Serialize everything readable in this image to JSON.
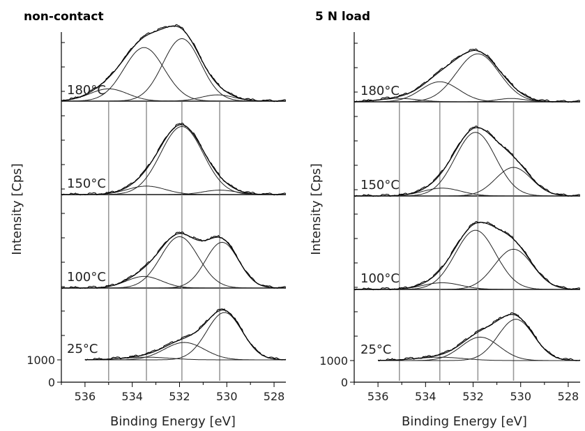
{
  "chart_data": [
    {
      "type": "line",
      "title": "non-contact",
      "xlabel": "Binding Energy [eV]",
      "ylabel": "Intensity [Cps]",
      "xlim": [
        537,
        527.5
      ],
      "x_ticks": [
        536,
        534,
        532,
        530,
        528
      ],
      "y_tick_labels": [
        "0",
        "1000"
      ],
      "reference_lines": [
        535.0,
        533.4,
        531.9,
        530.3
      ],
      "spectra": [
        {
          "label": "25°C",
          "components": [
            {
              "center": 533.4,
              "height": 120,
              "width": 1.0
            },
            {
              "center": 531.8,
              "height": 780,
              "width": 0.85
            },
            {
              "center": 530.1,
              "height": 2120,
              "width": 0.75
            }
          ]
        },
        {
          "label": "100°C",
          "components": [
            {
              "center": 533.5,
              "height": 520,
              "width": 0.75
            },
            {
              "center": 532.0,
              "height": 2300,
              "width": 0.8
            },
            {
              "center": 530.2,
              "height": 2050,
              "width": 0.7
            }
          ]
        },
        {
          "label": "150°C",
          "components": [
            {
              "center": 533.4,
              "height": 380,
              "width": 0.8
            },
            {
              "center": 531.9,
              "height": 3050,
              "width": 0.9
            },
            {
              "center": 530.3,
              "height": 200,
              "width": 0.7
            }
          ]
        },
        {
          "label": "180°C",
          "components": [
            {
              "center": 535.0,
              "height": 550,
              "width": 0.8
            },
            {
              "center": 533.5,
              "height": 2400,
              "width": 0.85
            },
            {
              "center": 531.9,
              "height": 2800,
              "width": 0.8
            },
            {
              "center": 530.4,
              "height": 280,
              "width": 0.7
            }
          ]
        }
      ]
    },
    {
      "type": "line",
      "title": "5 N load",
      "xlabel": "Binding Energy [eV]",
      "ylabel": "Intensity [Cps]",
      "xlim": [
        537,
        527.5
      ],
      "x_ticks": [
        536,
        534,
        532,
        530,
        528
      ],
      "y_tick_labels": [
        "0",
        "1000"
      ],
      "reference_lines": [
        535.1,
        533.4,
        531.8,
        530.3
      ],
      "spectra": [
        {
          "label": "25°C",
          "components": [
            {
              "center": 533.4,
              "height": 150,
              "width": 1.0
            },
            {
              "center": 531.7,
              "height": 1050,
              "width": 0.8
            },
            {
              "center": 530.2,
              "height": 1850,
              "width": 0.75
            }
          ]
        },
        {
          "label": "100°C",
          "components": [
            {
              "center": 533.3,
              "height": 300,
              "width": 0.8
            },
            {
              "center": 531.9,
              "height": 2650,
              "width": 0.85
            },
            {
              "center": 530.3,
              "height": 1800,
              "width": 0.8
            }
          ]
        },
        {
          "label": "150°C",
          "components": [
            {
              "center": 533.3,
              "height": 350,
              "width": 0.8
            },
            {
              "center": 531.9,
              "height": 2850,
              "width": 0.85
            },
            {
              "center": 530.3,
              "height": 1280,
              "width": 0.75
            }
          ]
        },
        {
          "label": "180°C",
          "components": [
            {
              "center": 535.1,
              "height": 150,
              "width": 0.8
            },
            {
              "center": 533.4,
              "height": 900,
              "width": 0.8
            },
            {
              "center": 531.8,
              "height": 2150,
              "width": 0.9
            },
            {
              "center": 530.4,
              "height": 150,
              "width": 0.6
            }
          ]
        }
      ]
    }
  ]
}
